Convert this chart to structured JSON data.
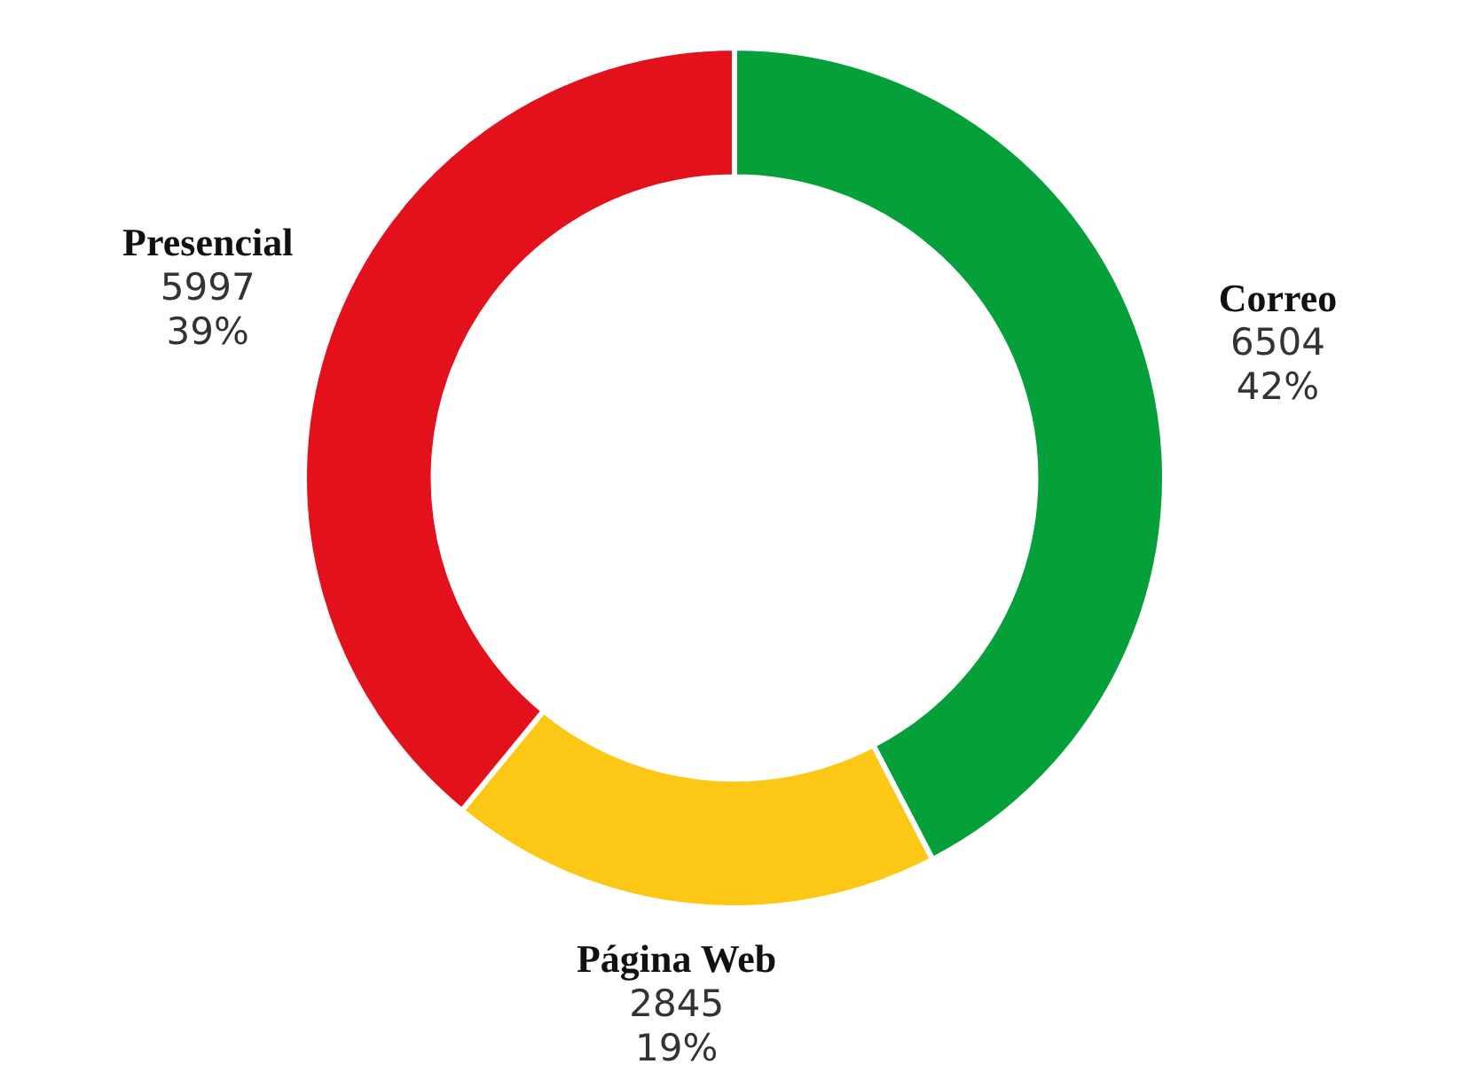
{
  "chart_data": {
    "type": "donut",
    "categories": [
      "Correo",
      "Página Web",
      "Presencial"
    ],
    "values": [
      6504,
      2845,
      5997
    ],
    "colors": [
      "#05a03a",
      "#fdc815",
      "#e3111b"
    ],
    "value_labels": [
      "6504\n42%",
      "2845\n19%",
      "5997\n39%"
    ],
    "legend": false
  }
}
